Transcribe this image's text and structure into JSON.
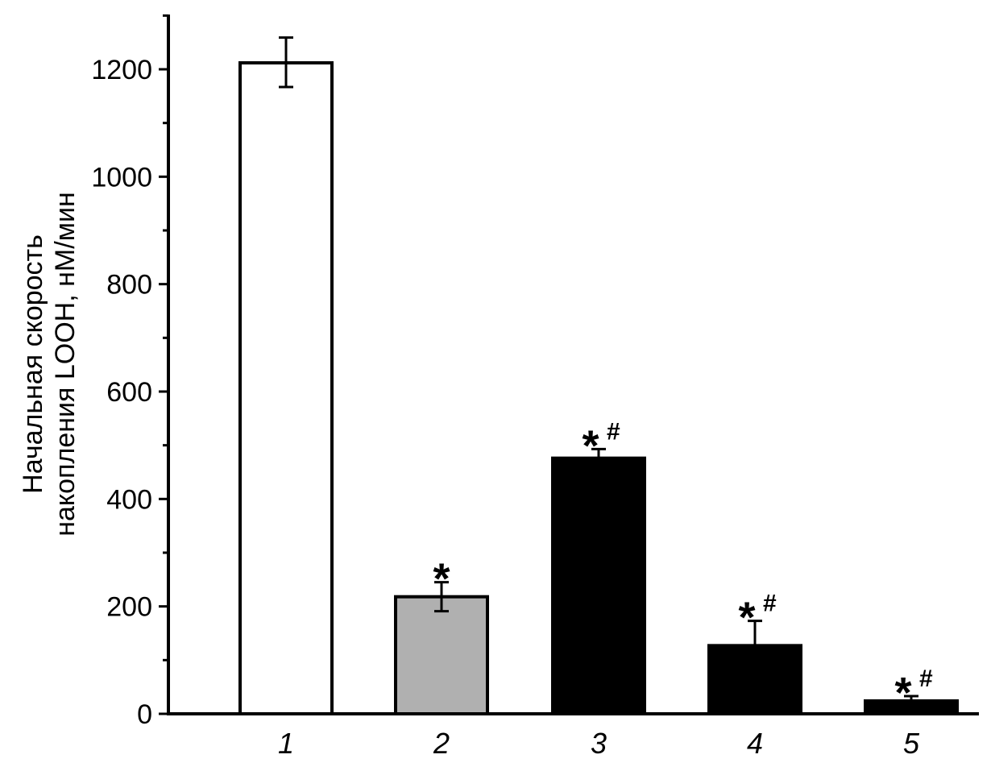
{
  "chart_data": {
    "type": "bar",
    "categories": [
      "1",
      "2",
      "3",
      "4",
      "5"
    ],
    "values": [
      1212,
      218,
      476,
      127,
      24
    ],
    "errors_upper": [
      47,
      27,
      17,
      46,
      9
    ],
    "errors_lower": [
      45,
      27,
      0,
      0,
      0
    ],
    "bar_fills": [
      "#ffffff",
      "#b0b0b0",
      "#000000",
      "#000000",
      "#000000"
    ],
    "annotations": [
      {
        "star": "",
        "hash": ""
      },
      {
        "star": "*",
        "hash": ""
      },
      {
        "star": "*",
        "hash": "#"
      },
      {
        "star": "*",
        "hash": "#"
      },
      {
        "star": "*",
        "hash": "#"
      }
    ],
    "title": "",
    "xlabel": "",
    "ylabel_lines": [
      "Начальная скорость",
      "накопления LOOH, нМ/мин"
    ],
    "ylim": [
      0,
      1300
    ],
    "yticks": [
      0,
      200,
      400,
      600,
      800,
      1000,
      1200
    ],
    "y_minor_step": 100,
    "grid": false,
    "legend": "none"
  }
}
